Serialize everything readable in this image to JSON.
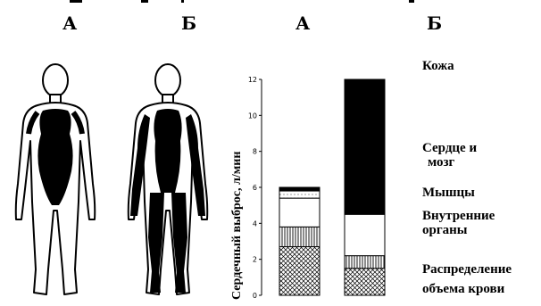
{
  "panel_labels": {
    "figure_a": "А",
    "figure_b": "Б",
    "bar_a": "А",
    "bar_b": "Б"
  },
  "legend_labels": {
    "skin": "Кожа",
    "heart_brain_line1": "Сердце и",
    "heart_brain_line2": "мозг",
    "muscles": "Мышцы",
    "organs_line1": "Внутренние",
    "organs_line2": "органы",
    "distribution_line1": "Распределение",
    "distribution_line2": "объема крови"
  },
  "colors": {
    "ink": "#000000",
    "paper": "#ffffff"
  },
  "chart_data": {
    "type": "bar",
    "stacked": true,
    "ylabel": "Сердечный выброс, л/мин",
    "ylim": [
      0,
      12
    ],
    "yticks": [
      "0",
      "2",
      "4",
      "6",
      "8",
      "10",
      "12"
    ],
    "categories": [
      "А",
      "Б"
    ],
    "series": [
      {
        "name": "Распределение объема крови",
        "pattern": "crosshatch",
        "values": [
          2.7,
          1.5
        ]
      },
      {
        "name": "Внутренние органы",
        "pattern": "vertical-stripes",
        "values": [
          1.1,
          0.7
        ]
      },
      {
        "name": "Мышцы",
        "pattern": "white",
        "values": [
          1.6,
          2.3
        ]
      },
      {
        "name": "Сердце и мозг",
        "pattern": "dotted-white",
        "values": [
          0.4,
          0
        ]
      },
      {
        "name": "Кожа",
        "pattern": "black",
        "values": [
          0.2,
          7.5
        ]
      }
    ]
  }
}
